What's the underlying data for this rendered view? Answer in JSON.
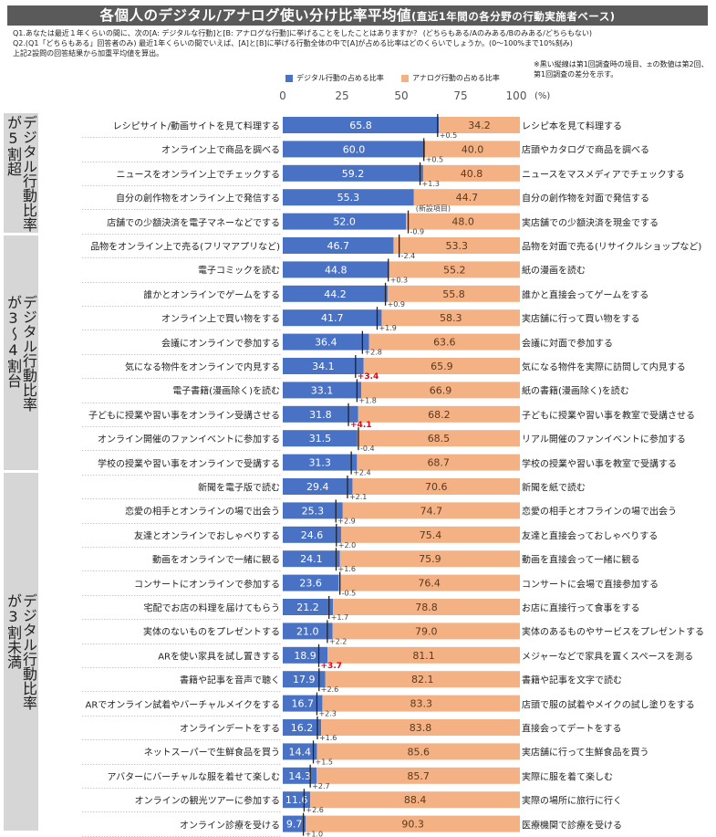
{
  "title": "各個人のデジタル/アナログ使い分け比率平均値",
  "subtitle": "(直近1年間の各分野の行動実施者ベース)",
  "questions": [
    "Q1.あなたは最近１年くらいの間に、次の[A: デジタルな行動]と[B: アナログな行動]に挙げることをしたことはありますか？ (どちらもある/Aのみある/Bのみある/どちらもない)",
    "Q2.(Q1「どちらもある」回答者のみ) 最近1年くらいの間でいえば、[A]と[B]に挙げる行動全体の中で[A]が占める比率はどのくらいでしょうか。(0～100%まで10%刻み)",
    "上記2設問の回答結果から加重平均値を算出。"
  ],
  "note": "※黒い縦線は第1回調査時の境目、±の数値は第2回、第1回調査の差分を示す。",
  "new_item_label": "(新設項目)",
  "axis_pct_label": "(%)",
  "groups": [
    {
      "label": "デジタル行動比率\nが5割超"
    },
    {
      "label": "デジタル行動比率\nが3～4割台"
    },
    {
      "label": "デジタル行動比率\nが3割未満"
    }
  ],
  "colors": {
    "digital": "#4a72c4",
    "analog": "#f4b183",
    "highlight": "#e60012",
    "marker": "#222222",
    "title_bg": "#5a5a5a"
  },
  "chart_data": {
    "type": "bar",
    "stacked": true,
    "orientation": "horizontal",
    "title": "各個人のデジタル/アナログ使い分け比率平均値",
    "xlim": [
      0,
      100
    ],
    "xticks": [
      0,
      25,
      50,
      75,
      100
    ],
    "legend": [
      "デジタル行動の占める比率",
      "アナログ行動の占める比率"
    ],
    "rows": [
      {
        "left": "レシピサイト/動画サイトを見て料理する",
        "right": "レシピ本を見て料理する",
        "digital": 65.8,
        "analog": 34.2,
        "diff": "+0.5",
        "prev": 65.3,
        "hl": false
      },
      {
        "left": "オンライン上で商品を調べる",
        "right": "店頭やカタログで商品を調べる",
        "digital": 60.0,
        "analog": 40.0,
        "diff": "+0.5",
        "prev": 59.5,
        "hl": false
      },
      {
        "left": "ニュースをオンライン上でチェックする",
        "right": "ニュースをマスメディアでチェックする",
        "digital": 59.2,
        "analog": 40.8,
        "diff": "+1.3",
        "prev": 57.9,
        "hl": false
      },
      {
        "left": "自分の創作物をオンライン上で発信する",
        "right": "自分の創作物を対面で発信する",
        "digital": 55.3,
        "analog": 44.7,
        "diff": "",
        "prev": null,
        "hl": false,
        "new": true
      },
      {
        "left": "店舗での少額決済を電子マネーなどでする",
        "right": "実店舗での少額決済を現金でする",
        "digital": 52.0,
        "analog": 48.0,
        "diff": "-0.9",
        "prev": 52.9,
        "hl": false
      },
      {
        "left": "品物をオンライン上で売る(フリマアプリなど)",
        "right": "品物を対面で売る(リサイクルショップなど)",
        "digital": 46.7,
        "analog": 53.3,
        "diff": "-2.4",
        "prev": 49.1,
        "hl": false
      },
      {
        "left": "電子コミックを読む",
        "right": "紙の漫画を読む",
        "digital": 44.8,
        "analog": 55.2,
        "diff": "+0.3",
        "prev": 44.5,
        "hl": false
      },
      {
        "left": "誰かとオンラインでゲームをする",
        "right": "誰かと直接会ってゲームをする",
        "digital": 44.2,
        "analog": 55.8,
        "diff": "+0.9",
        "prev": 43.3,
        "hl": false
      },
      {
        "left": "オンライン上で買い物をする",
        "right": "実店舗に行って買い物をする",
        "digital": 41.7,
        "analog": 58.3,
        "diff": "+1.9",
        "prev": 39.8,
        "hl": false
      },
      {
        "left": "会議にオンラインで参加する",
        "right": "会議に対面で参加する",
        "digital": 36.4,
        "analog": 63.6,
        "diff": "+2.8",
        "prev": 33.6,
        "hl": false
      },
      {
        "left": "気になる物件をオンラインで内見する",
        "right": "気になる物件を実際に訪問して内見する",
        "digital": 34.1,
        "analog": 65.9,
        "diff": "+3.4",
        "prev": 30.7,
        "hl": true
      },
      {
        "left": "電子書籍(漫画除く)を読む",
        "right": "紙の書籍(漫画除く)を読む",
        "digital": 33.1,
        "analog": 66.9,
        "diff": "+1.8",
        "prev": 31.3,
        "hl": false
      },
      {
        "left": "子どもに授業や習い事をオンライン受講させる",
        "right": "子どもに授業や習い事を教室で受講させる",
        "digital": 31.8,
        "analog": 68.2,
        "diff": "+4.1",
        "prev": 27.7,
        "hl": true
      },
      {
        "left": "オンライン開催のファンイベントに参加する",
        "right": "リアル開催のファンイベントに参加する",
        "digital": 31.5,
        "analog": 68.5,
        "diff": "-0.4",
        "prev": 31.9,
        "hl": false
      },
      {
        "left": "学校の授業や習い事をオンラインで受講する",
        "right": "学校の授業や習い事を教室で受講する",
        "digital": 31.3,
        "analog": 68.7,
        "diff": "+2.4",
        "prev": 28.9,
        "hl": false
      },
      {
        "left": "新聞を電子版で読む",
        "right": "新聞を紙で読む",
        "digital": 29.4,
        "analog": 70.6,
        "diff": "+2.1",
        "prev": 27.3,
        "hl": false
      },
      {
        "left": "恋愛の相手とオンラインの場で出会う",
        "right": "恋愛の相手とオフラインの場で出会う",
        "digital": 25.3,
        "analog": 74.7,
        "diff": "+2.9",
        "prev": 22.4,
        "hl": false
      },
      {
        "left": "友達とオンラインでおしゃべりする",
        "right": "友達と直接会っておしゃべりする",
        "digital": 24.6,
        "analog": 75.4,
        "diff": "+2.0",
        "prev": 22.6,
        "hl": false
      },
      {
        "left": "動画をオンラインで一緒に観る",
        "right": "動画を直接会って一緒に観る",
        "digital": 24.1,
        "analog": 75.9,
        "diff": "+1.6",
        "prev": 22.5,
        "hl": false
      },
      {
        "left": "コンサートにオンラインで参加する",
        "right": "コンサートに会場で直接参加する",
        "digital": 23.6,
        "analog": 76.4,
        "diff": "-0.5",
        "prev": 24.1,
        "hl": false
      },
      {
        "left": "宅配でお店の料理を届けてもらう",
        "right": "お店に直接行って食事をする",
        "digital": 21.2,
        "analog": 78.8,
        "diff": "+1.7",
        "prev": 19.5,
        "hl": false
      },
      {
        "left": "実体のないものをプレゼントする",
        "right": "実体のあるものやサービスをプレゼントする",
        "digital": 21.0,
        "analog": 79.0,
        "diff": "+2.2",
        "prev": 18.8,
        "hl": false
      },
      {
        "left": "ARを使い家具を試し置きする",
        "right": "メジャーなどで家具を置くスペースを測る",
        "digital": 18.9,
        "analog": 81.1,
        "diff": "+3.7",
        "prev": 15.2,
        "hl": true
      },
      {
        "left": "書籍や記事を音声で聴く",
        "right": "書籍や記事を文字で読む",
        "digital": 17.9,
        "analog": 82.1,
        "diff": "+2.6",
        "prev": 15.3,
        "hl": false
      },
      {
        "left": "ARでオンライン試着やバーチャルメイクをする",
        "right": "店頭で服の試着やメイクの試し塗りをする",
        "digital": 16.7,
        "analog": 83.3,
        "diff": "+2.3",
        "prev": 14.4,
        "hl": false
      },
      {
        "left": "オンラインデートをする",
        "right": "直接会ってデートをする",
        "digital": 16.2,
        "analog": 83.8,
        "diff": "+1.6",
        "prev": 14.6,
        "hl": false
      },
      {
        "left": "ネットスーパーで生鮮食品を買う",
        "right": "実店舗に行って生鮮食品を買う",
        "digital": 14.4,
        "analog": 85.6,
        "diff": "+1.5",
        "prev": 12.9,
        "hl": false
      },
      {
        "left": "アバターにバーチャルな服を着せて楽しむ",
        "right": "実際に服を着て楽しむ",
        "digital": 14.3,
        "analog": 85.7,
        "diff": "+2.7",
        "prev": 11.6,
        "hl": false
      },
      {
        "left": "オンラインの観光ツアーに参加する",
        "right": "実際の場所に旅行に行く",
        "digital": 11.6,
        "analog": 88.4,
        "diff": "+2.6",
        "prev": 9.0,
        "hl": false
      },
      {
        "left": "オンライン診療を受ける",
        "right": "医療機関で診療を受ける",
        "digital": 9.7,
        "analog": 90.3,
        "diff": "+1.0",
        "prev": 8.7,
        "hl": false
      }
    ]
  }
}
